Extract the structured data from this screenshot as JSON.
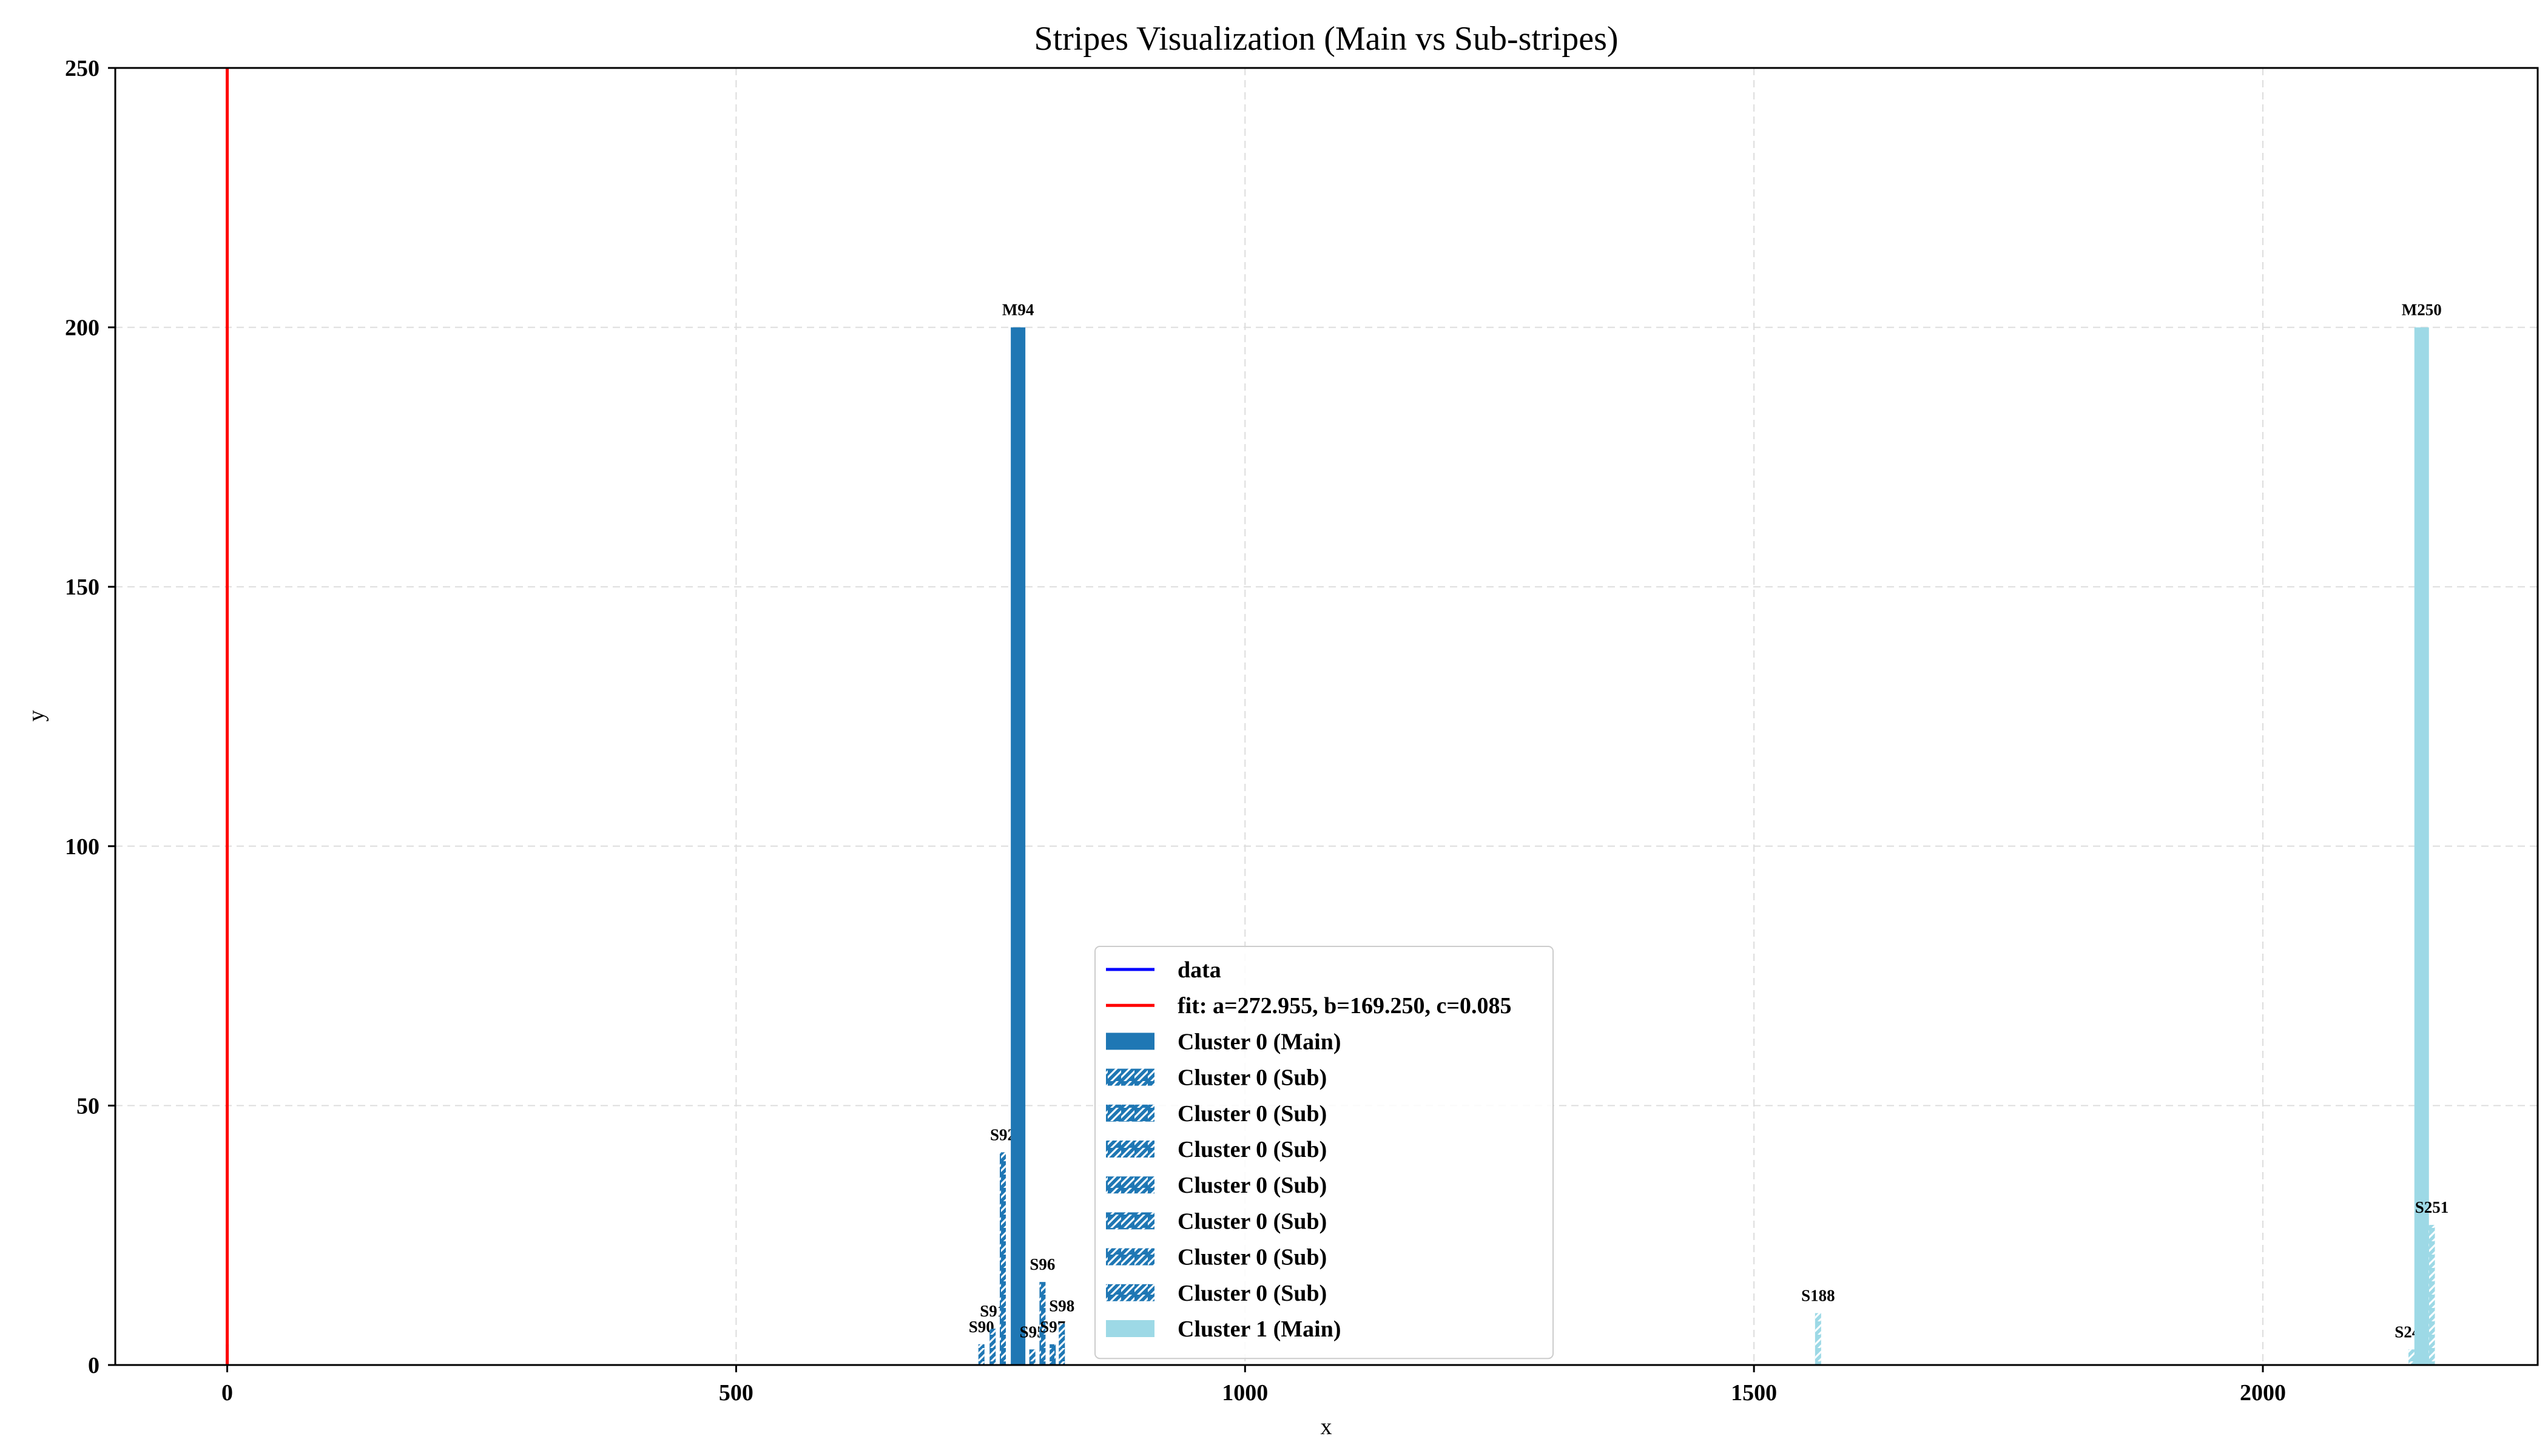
{
  "chart_data": {
    "type": "bar",
    "title": "Stripes Visualization (Main vs Sub-stripes)",
    "xlabel": "x",
    "ylabel": "y",
    "xlim": [
      -110,
      2270
    ],
    "ylim": [
      0,
      250
    ],
    "xticks": [
      0,
      500,
      1000,
      1500,
      2000
    ],
    "yticks": [
      0,
      50,
      100,
      150,
      200,
      250
    ],
    "grid": true,
    "legend_position": "lower center",
    "colors": {
      "cluster0": "#1f77b4",
      "cluster1": "#9dd9e6",
      "data_line": "#0000ff",
      "fit_line": "#ff0000",
      "grid": "#dddddd"
    },
    "lines": [
      {
        "name": "data",
        "color": "#0000ff",
        "x": [
          0,
          0
        ],
        "y": [
          0,
          4
        ]
      },
      {
        "name": "fit: a=272.955, b=169.250, c=0.085",
        "color": "#ff0000",
        "x": [
          0,
          0
        ],
        "y": [
          0,
          250
        ]
      }
    ],
    "bars": [
      {
        "label": "S90",
        "x": 741,
        "y": 4,
        "cluster": 0,
        "kind": "sub"
      },
      {
        "label": "S91",
        "x": 752,
        "y": 7,
        "cluster": 0,
        "kind": "sub"
      },
      {
        "label": "S92",
        "x": 762,
        "y": 41,
        "cluster": 0,
        "kind": "sub"
      },
      {
        "label": "M94",
        "x": 777,
        "y": 200,
        "cluster": 0,
        "kind": "main"
      },
      {
        "label": "S95",
        "x": 791,
        "y": 3,
        "cluster": 0,
        "kind": "sub"
      },
      {
        "label": "S96",
        "x": 801,
        "y": 16,
        "cluster": 0,
        "kind": "sub"
      },
      {
        "label": "S97",
        "x": 811,
        "y": 4,
        "cluster": 0,
        "kind": "sub"
      },
      {
        "label": "S98",
        "x": 820,
        "y": 8,
        "cluster": 0,
        "kind": "sub"
      },
      {
        "label": "S188",
        "x": 1563,
        "y": 10,
        "cluster": 1,
        "kind": "sub"
      },
      {
        "label": "S249",
        "x": 2146,
        "y": 3,
        "cluster": 1,
        "kind": "sub"
      },
      {
        "label": "M250",
        "x": 2156,
        "y": 200,
        "cluster": 1,
        "kind": "main"
      },
      {
        "label": "S251",
        "x": 2166,
        "y": 27,
        "cluster": 1,
        "kind": "sub"
      }
    ],
    "legend": [
      {
        "label": "data",
        "kind": "line",
        "color": "#0000ff"
      },
      {
        "label": "fit: a=272.955, b=169.250, c=0.085",
        "kind": "line",
        "color": "#ff0000"
      },
      {
        "label": "Cluster 0 (Main)",
        "kind": "main",
        "color": "#1f77b4"
      },
      {
        "label": "Cluster 0 (Sub)",
        "kind": "sub",
        "color": "#1f77b4"
      },
      {
        "label": "Cluster 0 (Sub)",
        "kind": "sub",
        "color": "#1f77b4"
      },
      {
        "label": "Cluster 0 (Sub)",
        "kind": "sub",
        "color": "#1f77b4"
      },
      {
        "label": "Cluster 0 (Sub)",
        "kind": "sub",
        "color": "#1f77b4"
      },
      {
        "label": "Cluster 0 (Sub)",
        "kind": "sub",
        "color": "#1f77b4"
      },
      {
        "label": "Cluster 0 (Sub)",
        "kind": "sub",
        "color": "#1f77b4"
      },
      {
        "label": "Cluster 0 (Sub)",
        "kind": "sub",
        "color": "#1f77b4"
      },
      {
        "label": "Cluster 1 (Main)",
        "kind": "main",
        "color": "#9dd9e6"
      }
    ]
  }
}
